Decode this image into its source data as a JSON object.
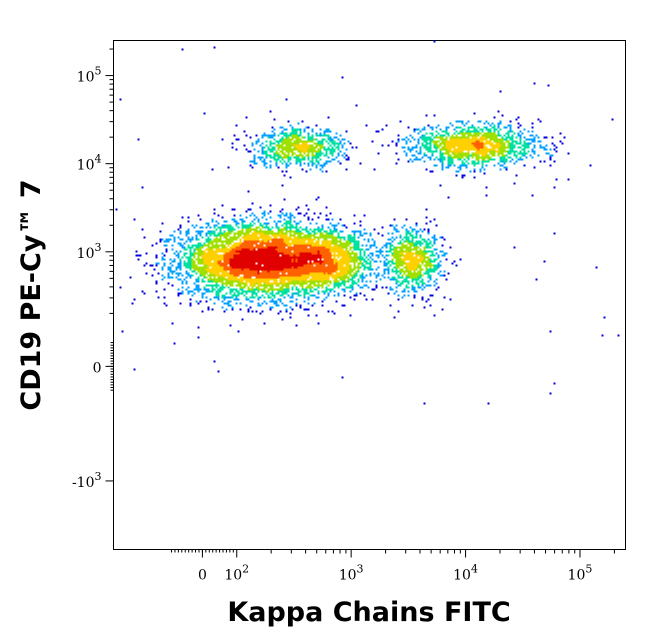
{
  "chart_data": {
    "type": "scatter",
    "style": "density-dot-plot",
    "xlabel": "Kappa Chains FITC",
    "ylabel": "CD19 PE-Cy™ 7",
    "x_scale": "biexponential",
    "y_scale": "biexponential",
    "x_ticks": [
      {
        "base": "0",
        "exp": "",
        "value": 0
      },
      {
        "base": "10",
        "exp": "2",
        "value": 100
      },
      {
        "base": "10",
        "exp": "3",
        "value": 1000
      },
      {
        "base": "10",
        "exp": "4",
        "value": 10000
      },
      {
        "base": "10",
        "exp": "5",
        "value": 100000
      }
    ],
    "y_ticks": [
      {
        "base": "10",
        "exp": "5",
        "value": 100000
      },
      {
        "base": "10",
        "exp": "4",
        "value": 10000
      },
      {
        "base": "10",
        "exp": "3",
        "value": 1000
      },
      {
        "base": "0",
        "exp": "",
        "value": 0
      },
      {
        "base": "-10",
        "exp": "3",
        "value": -1000
      }
    ],
    "xlim": [
      -300,
      250000
    ],
    "ylim": [
      -6000,
      250000
    ],
    "grid": false,
    "legend": "none",
    "density_colors": [
      "#0000dd",
      "#00a0ff",
      "#00e0a0",
      "#a0e000",
      "#ffd000",
      "#ff6000",
      "#e00000"
    ],
    "populations": [
      {
        "x_center": 150,
        "y_center": 800,
        "x_spread": 0.55,
        "y_spread": 0.35,
        "points": 5200,
        "peak": "red"
      },
      {
        "x_center": 600,
        "y_center": 800,
        "x_spread": 0.35,
        "y_spread": 0.3,
        "points": 1800,
        "peak": "green"
      },
      {
        "x_center": 3500,
        "y_center": 800,
        "x_spread": 0.22,
        "y_spread": 0.3,
        "points": 900,
        "peak": "blue"
      },
      {
        "x_center": 350,
        "y_center": 15000,
        "x_spread": 0.35,
        "y_spread": 0.18,
        "points": 800,
        "peak": "blue"
      },
      {
        "x_center": 12000,
        "y_center": 16000,
        "x_spread": 0.45,
        "y_spread": 0.2,
        "points": 1500,
        "peak": "blue"
      }
    ]
  }
}
